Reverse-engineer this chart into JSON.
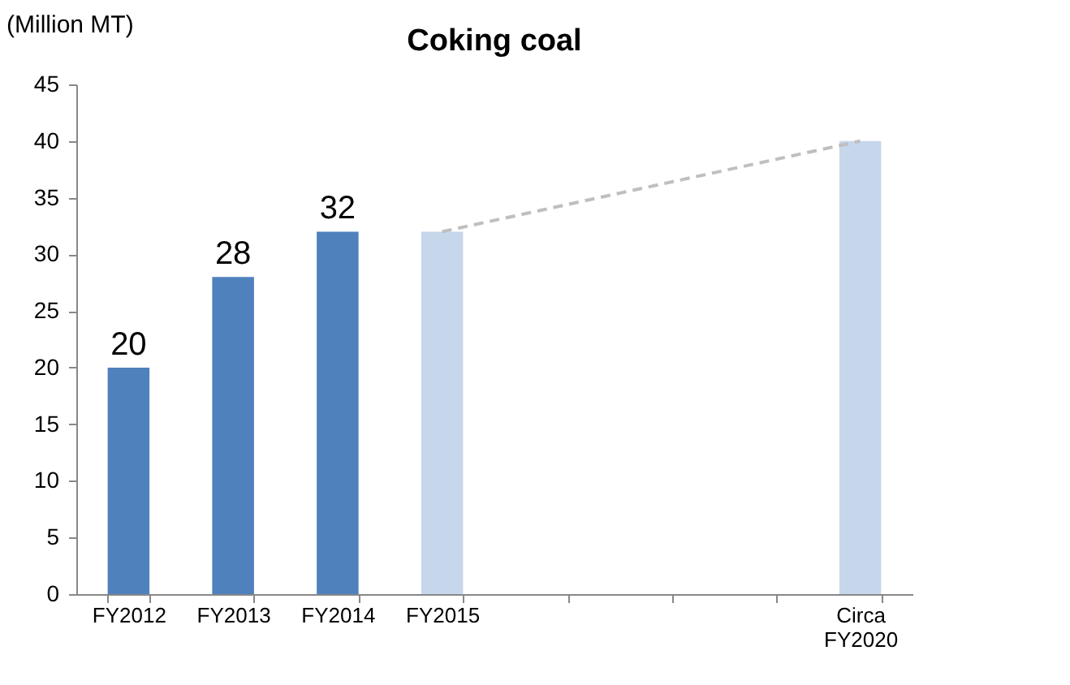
{
  "chart_data": {
    "type": "bar",
    "title": "Coking coal",
    "ylabel": "(Million MT)",
    "categories": [
      "FY2012",
      "FY2013",
      "FY2014",
      "FY2015",
      null,
      null,
      null,
      "Circa FY2020"
    ],
    "series": [
      {
        "colors": [
          "#4f81bd",
          "#4f81bd",
          "#4f81bd",
          "#c6d7ec",
          null,
          null,
          null,
          "#c6d7ec"
        ],
        "values": [
          20,
          28,
          32,
          32,
          null,
          null,
          null,
          40
        ],
        "value_labels": [
          "20",
          "28",
          "32",
          null,
          null,
          null,
          null,
          null
        ]
      },
      {
        "type": "line",
        "color": "#bfbfbf",
        "line_style": "dashed",
        "values": [
          null,
          null,
          null,
          32,
          null,
          null,
          null,
          40
        ]
      }
    ],
    "ylim": [
      0,
      45
    ],
    "yticks": [
      0,
      5,
      10,
      15,
      20,
      25,
      30,
      35,
      40,
      45
    ],
    "grid": false
  }
}
